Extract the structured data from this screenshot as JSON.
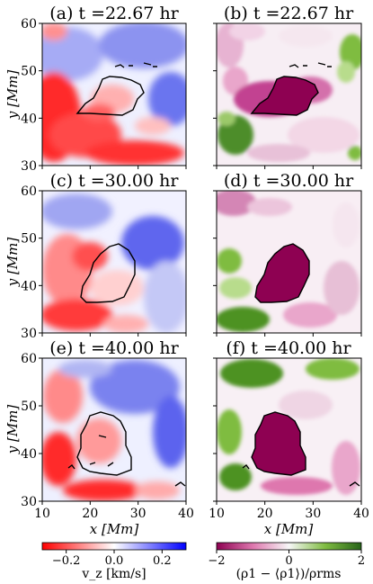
{
  "panels": [
    {
      "id": "a",
      "title": "(a) t =22.67 hr",
      "field": "vz",
      "row": 0,
      "col": 0
    },
    {
      "id": "b",
      "title": "(b) t =22.67 hr",
      "field": "rho",
      "row": 0,
      "col": 1
    },
    {
      "id": "c",
      "title": "(c) t =30.00 hr",
      "field": "vz",
      "row": 1,
      "col": 0
    },
    {
      "id": "d",
      "title": "(d) t =30.00 hr",
      "field": "rho",
      "row": 1,
      "col": 1
    },
    {
      "id": "e",
      "title": "(e) t =40.00 hr",
      "field": "vz",
      "row": 2,
      "col": 0
    },
    {
      "id": "f",
      "title": "(f) t =40.00 hr",
      "field": "rho",
      "row": 2,
      "col": 1
    }
  ],
  "axes": {
    "x_label": "x [Mm]",
    "y_label": "y [Mm]",
    "x_ticks": [
      "10",
      "20",
      "30",
      "40"
    ],
    "y_ticks": [
      "30",
      "40",
      "50",
      "60"
    ],
    "xlim": [
      10,
      40
    ],
    "ylim": [
      30,
      60
    ]
  },
  "colorbars": [
    {
      "name": "vz",
      "label": "v_z [km/s]",
      "ticks": [
        "−0.2",
        "0.0",
        "0.2"
      ],
      "tick_values": [
        -0.2,
        0.0,
        0.2
      ],
      "range": [
        -0.3,
        0.3
      ],
      "colors": [
        "#ff0000",
        "#ffffff",
        "#0000ff"
      ]
    },
    {
      "name": "rho",
      "label": "(ρ1 − ⟨ρ1⟩)/ρrms",
      "ticks": [
        "−2",
        "0",
        "2"
      ],
      "tick_values": [
        -2,
        0,
        2
      ],
      "range": [
        -2,
        2
      ],
      "colors": [
        "#8e0152",
        "#f7f7f7",
        "#276419"
      ]
    }
  ]
}
